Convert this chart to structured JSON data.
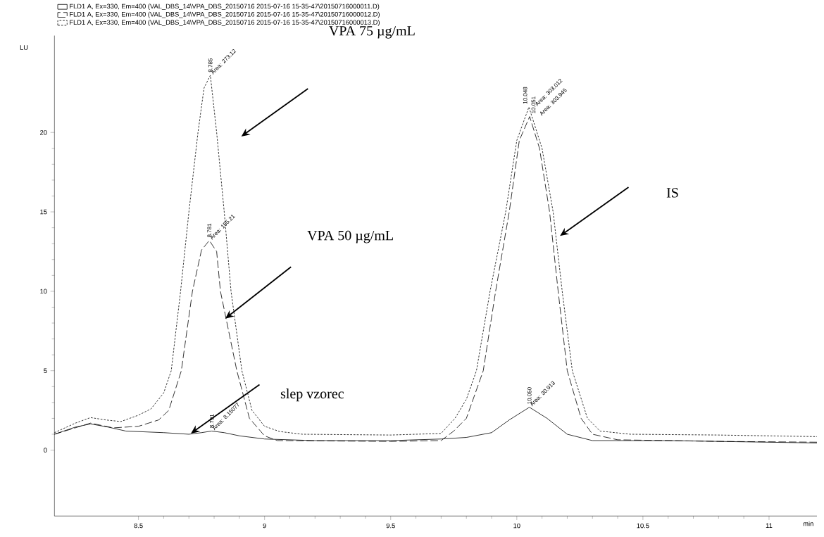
{
  "chart_data": {
    "type": "line",
    "ylabel": "LU",
    "xlabel": "min",
    "xlim": [
      8.167,
      11.19
    ],
    "ylim": [
      -4.15,
      26.1
    ],
    "xticks": [
      8.5,
      9,
      9.5,
      10,
      10.5,
      11
    ],
    "yticks": [
      0,
      5,
      10,
      15,
      20
    ],
    "legend": "top left",
    "grid": false,
    "marker": "none",
    "series": [
      {
        "name": "FLD1 A, Ex=330, Em=400 (VAL_DBS_14\\VPA_DBS_20150716 2015-07-16 15-35-47\\20150716000011.D)",
        "color": "#000000",
        "line_style": "solid",
        "x": [
          8.167,
          8.25,
          8.31,
          8.38,
          8.45,
          8.6,
          8.7,
          8.75,
          8.79,
          8.84,
          8.9,
          9.0,
          9.2,
          9.5,
          9.7,
          9.8,
          9.9,
          9.97,
          10.05,
          10.12,
          10.2,
          10.3,
          10.6,
          11.19
        ],
        "values": [
          1.0,
          1.45,
          1.65,
          1.45,
          1.2,
          1.1,
          1.0,
          1.1,
          1.2,
          1.1,
          0.9,
          0.7,
          0.6,
          0.6,
          0.7,
          0.8,
          1.1,
          1.9,
          2.7,
          2.0,
          1.0,
          0.6,
          0.6,
          0.45
        ]
      },
      {
        "name": "FLD1 A, Ex=330, Em=400 (VAL_DBS_14\\VPA_DBS_20150716 2015-07-16 15-35-47\\20150716000012.D)",
        "color": "#000000",
        "line_style": "dashed",
        "x": [
          8.167,
          8.31,
          8.4,
          8.5,
          8.58,
          8.62,
          8.67,
          8.714,
          8.75,
          8.781,
          8.81,
          8.825,
          8.89,
          8.94,
          9.0,
          9.05,
          9.5,
          9.7,
          9.75,
          9.8,
          9.867,
          9.916,
          9.97,
          10.01,
          10.051,
          10.09,
          10.13,
          10.164,
          10.2,
          10.255,
          10.3,
          10.4,
          10.8,
          11.19
        ],
        "values": [
          1.0,
          1.7,
          1.4,
          1.5,
          1.9,
          2.5,
          5,
          10,
          12.6,
          13.2,
          12.5,
          10,
          5,
          2,
          0.9,
          0.6,
          0.55,
          0.6,
          1.2,
          2,
          5,
          10,
          15,
          19.5,
          21.0,
          19,
          15,
          10,
          5,
          2,
          1.0,
          0.65,
          0.55,
          0.5
        ]
      },
      {
        "name": "FLD1 A, Ex=330, Em=400 (VAL_DBS_14\\VPA_DBS_20150716 2015-07-16 15-35-47\\20150716000013.D)",
        "color": "#000000",
        "line_style": "dotted",
        "x": [
          8.167,
          8.25,
          8.31,
          8.37,
          8.43,
          8.5,
          8.55,
          8.6,
          8.63,
          8.667,
          8.7,
          8.736,
          8.76,
          8.785,
          8.81,
          8.84,
          8.867,
          8.91,
          8.95,
          9.0,
          9.06,
          9.15,
          9.5,
          9.7,
          9.755,
          9.8,
          9.84,
          9.894,
          9.956,
          10.0,
          10.048,
          10.1,
          10.144,
          10.18,
          10.22,
          10.28,
          10.33,
          10.45,
          10.8,
          11.19
        ],
        "values": [
          1.1,
          1.7,
          2.05,
          1.9,
          1.8,
          2.2,
          2.6,
          3.6,
          5,
          10,
          15,
          20,
          22.8,
          23.6,
          20,
          15,
          10,
          5,
          2.5,
          1.5,
          1.17,
          1.0,
          0.95,
          1.05,
          2,
          3.2,
          5,
          10,
          15,
          19.5,
          21.6,
          19,
          15,
          10,
          5,
          2,
          1.2,
          1.0,
          0.95,
          0.85
        ]
      }
    ],
    "annotations": [
      {
        "text": "8.785",
        "x": 8.785,
        "y": 23.6
      },
      {
        "text": "Area: 273.12",
        "x": 8.785,
        "y": 23.6
      },
      {
        "text": "8.781",
        "x": 8.781,
        "y": 13.2
      },
      {
        "text": "Area: 155.21",
        "x": 8.781,
        "y": 13.2
      },
      {
        "text": "10.048",
        "x": 10.048,
        "y": 21.6
      },
      {
        "text": "Area: 303.012",
        "x": 10.048,
        "y": 21.6
      },
      {
        "text": "10.051",
        "x": 10.051,
        "y": 21.0
      },
      {
        "text": "Area: 303.945",
        "x": 10.051,
        "y": 21.0
      },
      {
        "text": "8.791",
        "x": 8.791,
        "y": 1.2
      },
      {
        "text": "Area: 8.15077",
        "x": 8.791,
        "y": 1.2
      },
      {
        "text": "10.050",
        "x": 10.05,
        "y": 2.7
      },
      {
        "text": "Area: 30.913",
        "x": 10.05,
        "y": 2.7
      },
      "VPA 75 µg/mL",
      "VPA 50 µg/mL",
      "IS",
      "slep vzorec"
    ]
  }
}
